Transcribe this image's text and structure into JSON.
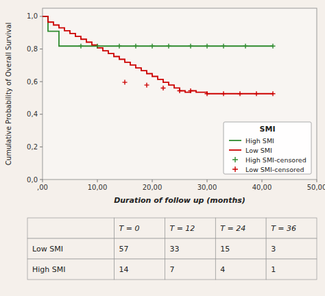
{
  "chart_data": {
    "type": "step",
    "xlabel": "Duration of follow up (months)",
    "ylabel": "Cumulative Probability of Overall Survival",
    "legend_title": "SMI",
    "legend": "lower right",
    "grid": false,
    "background": "#f5f0eb",
    "xlim": [
      0,
      50
    ],
    "ylim": [
      0.0,
      1.05
    ],
    "xticks": [
      {
        "value": 0,
        "label": ",00"
      },
      {
        "value": 10,
        "label": "10,00"
      },
      {
        "value": 20,
        "label": "20,00"
      },
      {
        "value": 30,
        "label": "30,00"
      },
      {
        "value": 40,
        "label": "40,00"
      },
      {
        "value": 50,
        "label": "50,00"
      }
    ],
    "yticks": [
      {
        "value": 0.0,
        "label": "0,0"
      },
      {
        "value": 0.2,
        "label": "0,2"
      },
      {
        "value": 0.4,
        "label": "0,4"
      },
      {
        "value": 0.6,
        "label": "0,6"
      },
      {
        "value": 0.8,
        "label": "0,8"
      },
      {
        "value": 1.0,
        "label": "1,0"
      }
    ],
    "series": [
      {
        "name": "High SMI",
        "type": "step",
        "color": "#2e8b2e",
        "x": [
          0,
          1,
          3,
          5,
          42
        ],
        "values": [
          1.0,
          0.909,
          0.818,
          0.818,
          0.818
        ]
      },
      {
        "name": "Low SMI",
        "type": "step",
        "color": "#cc0000",
        "x": [
          0,
          1,
          2,
          3,
          4,
          5,
          6,
          7,
          8,
          9,
          10,
          11,
          12,
          13,
          14,
          15,
          16,
          17,
          18,
          19,
          20,
          21,
          22,
          23,
          24,
          25,
          26,
          27,
          28,
          29,
          30,
          42
        ],
        "values": [
          1.0,
          0.965,
          0.947,
          0.93,
          0.912,
          0.895,
          0.877,
          0.86,
          0.842,
          0.825,
          0.807,
          0.789,
          0.772,
          0.754,
          0.737,
          0.719,
          0.702,
          0.684,
          0.667,
          0.649,
          0.632,
          0.614,
          0.596,
          0.579,
          0.561,
          0.544,
          0.535,
          0.544,
          0.535,
          0.535,
          0.526,
          0.526
        ]
      },
      {
        "name": "High SMI-censored",
        "type": "scatter",
        "marker": "plus",
        "color": "#2e8b2e",
        "x": [
          7,
          10,
          14,
          17,
          20,
          23,
          27,
          30,
          33,
          37,
          42
        ],
        "values": [
          0.818,
          0.818,
          0.818,
          0.818,
          0.818,
          0.818,
          0.818,
          0.818,
          0.818,
          0.818,
          0.818
        ]
      },
      {
        "name": "Low SMI-censored",
        "type": "scatter",
        "marker": "plus",
        "color": "#cc0000",
        "x": [
          15,
          19,
          22,
          25,
          27,
          30,
          33,
          36,
          39,
          42
        ],
        "values": [
          0.596,
          0.579,
          0.561,
          0.544,
          0.544,
          0.526,
          0.526,
          0.526,
          0.526,
          0.526
        ]
      }
    ],
    "table": {
      "headers": [
        null,
        "T = 0",
        "T = 12",
        "T = 24",
        "T = 36"
      ],
      "rows": [
        {
          "label": "Low SMI",
          "values": [
            57,
            33,
            15,
            3
          ]
        },
        {
          "label": "High SMI",
          "values": [
            14,
            7,
            4,
            1
          ]
        }
      ]
    }
  }
}
